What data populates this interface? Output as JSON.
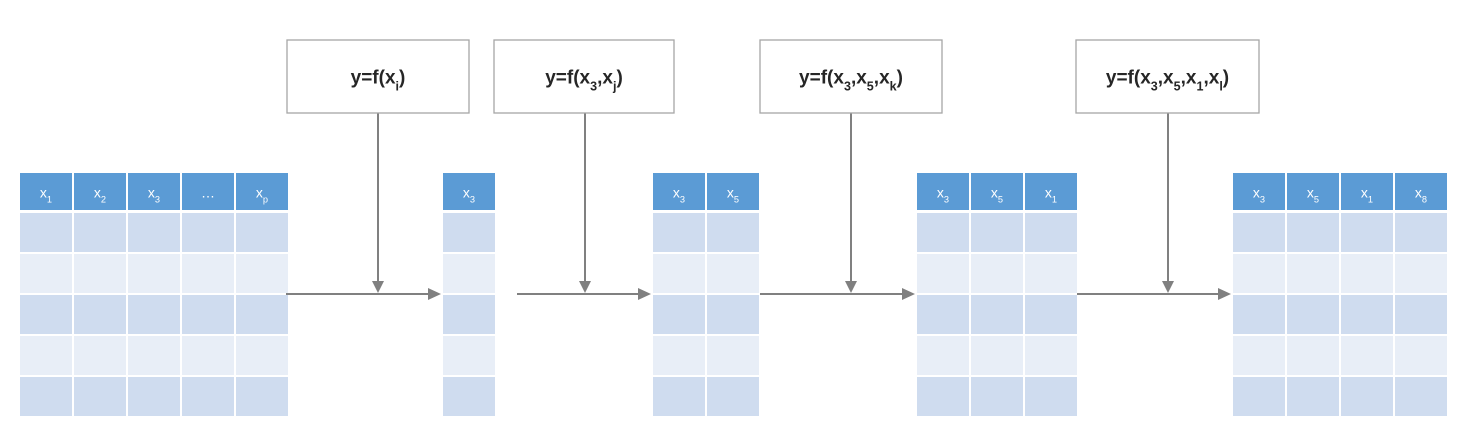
{
  "tables": [
    {
      "columns": [
        "x1",
        "x2",
        "x3",
        "…",
        "xp"
      ],
      "row_count": 5
    },
    {
      "columns": [
        "x3"
      ],
      "row_count": 5
    },
    {
      "columns": [
        "x3",
        "x5"
      ],
      "row_count": 5
    },
    {
      "columns": [
        "x3",
        "x5",
        "x1"
      ],
      "row_count": 5
    },
    {
      "columns": [
        "x3",
        "x5",
        "x1",
        "x8"
      ],
      "row_count": 5
    }
  ],
  "functions": [
    {
      "label": "y=f(xi)"
    },
    {
      "label": "y=f(x3,xj)"
    },
    {
      "label": "y=f(x3,x5,xk)"
    },
    {
      "label": "y=f(x3,x5,x1,xl)"
    }
  ],
  "colors": {
    "header": "#5b9bd5",
    "row_dark": "#cfdcef",
    "row_light": "#e8eef7",
    "arrow": "#808080",
    "box_border": "#a6a6a6"
  }
}
